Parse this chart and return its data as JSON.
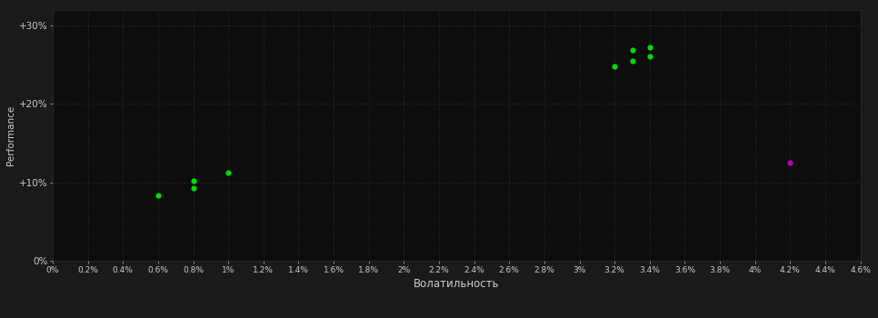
{
  "background_color": "#1a1a1a",
  "plot_bg_color": "#0d0d0d",
  "xlabel": "Волатильность",
  "ylabel": "Performance",
  "xlim": [
    0.0,
    0.046
  ],
  "ylim": [
    0.0,
    0.32
  ],
  "xticks": [
    0.0,
    0.002,
    0.004,
    0.006,
    0.008,
    0.01,
    0.012,
    0.014,
    0.016,
    0.018,
    0.02,
    0.022,
    0.024,
    0.026,
    0.028,
    0.03,
    0.032,
    0.034,
    0.036,
    0.038,
    0.04,
    0.042,
    0.044,
    0.046
  ],
  "yticks": [
    0.0,
    0.1,
    0.2,
    0.3
  ],
  "ytick_labels": [
    "0%",
    "+10%",
    "+20%",
    "+30%"
  ],
  "xtick_labels": [
    "0%",
    "0.2%",
    "0.4%",
    "0.6%",
    "0.8%",
    "1%",
    "1.2%",
    "1.4%",
    "1.6%",
    "1.8%",
    "2%",
    "2.2%",
    "2.4%",
    "2.6%",
    "2.8%",
    "3%",
    "3.2%",
    "3.4%",
    "3.6%",
    "3.8%",
    "4%",
    "4.2%",
    "4.4%",
    "4.6%"
  ],
  "green_points_x": [
    0.006,
    0.008,
    0.008,
    0.01,
    0.032,
    0.033,
    0.034,
    0.033,
    0.034
  ],
  "green_points_y": [
    0.083,
    0.102,
    0.093,
    0.112,
    0.248,
    0.255,
    0.26,
    0.268,
    0.272
  ],
  "green_color": "#00dd00",
  "purple_points_x": [
    0.042
  ],
  "purple_points_y": [
    0.125
  ],
  "purple_color": "#bb00bb",
  "figsize": [
    9.66,
    3.5
  ],
  "dpi": 100,
  "marker_size": 20
}
